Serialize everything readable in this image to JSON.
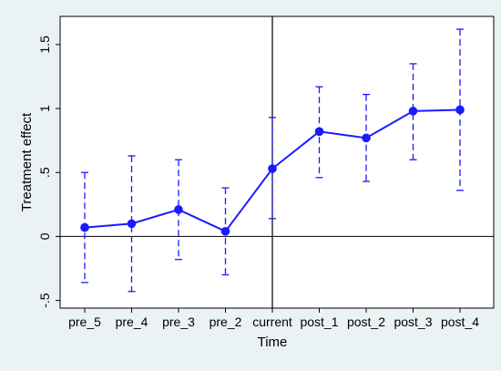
{
  "chart_data": {
    "type": "line",
    "xlabel": "Time",
    "ylabel": "Treatment effect",
    "categories": [
      "pre_5",
      "pre_4",
      "pre_3",
      "pre_2",
      "current",
      "post_1",
      "post_2",
      "post_3",
      "post_4"
    ],
    "series": [
      {
        "values": [
          0.07,
          0.1,
          0.21,
          0.04,
          0.53,
          0.82,
          0.77,
          0.98,
          0.99
        ],
        "ci_lower": [
          -0.36,
          -0.43,
          -0.18,
          -0.3,
          0.14,
          0.46,
          0.43,
          0.6,
          0.36
        ],
        "ci_upper": [
          0.5,
          0.63,
          0.6,
          0.38,
          0.93,
          1.17,
          1.11,
          1.35,
          1.62
        ]
      }
    ],
    "yticks": [
      -0.5,
      0,
      0.5,
      1,
      1.5
    ],
    "yticklabels": [
      "-.5",
      "0",
      ".5",
      "1",
      "1.5"
    ],
    "ylim": [
      -0.56,
      1.72
    ],
    "reference_lines": {
      "horizontal": 0,
      "vertical_category": "current"
    },
    "grid": false,
    "legend": "none",
    "colors": {
      "series": "#1a1aff",
      "reference": "#000000",
      "background": "#eaf2f3",
      "plot_area": "#ffffff"
    }
  }
}
